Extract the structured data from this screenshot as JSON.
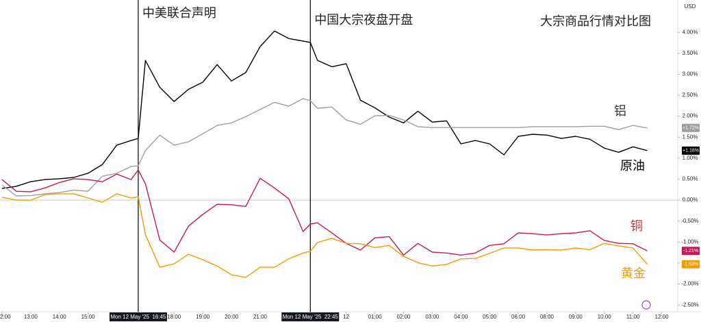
{
  "chart_data": {
    "type": "line",
    "title": "大宗商品行情对比图",
    "currency": "USD",
    "x": [
      0,
      0.5,
      1,
      1.5,
      2,
      2.5,
      3,
      3.5,
      4,
      4.5,
      4.75,
      5,
      5.5,
      6,
      6.5,
      7,
      7.5,
      8,
      8.5,
      9,
      9.5,
      10,
      10.5,
      10.75,
      11,
      11.5,
      12,
      12.5,
      13,
      13.5,
      14,
      14.5,
      15,
      15.5,
      16,
      16.5,
      17,
      17.5,
      18,
      18.5,
      19,
      19.5,
      20,
      20.5,
      21,
      21.5,
      22,
      22.5
    ],
    "series": [
      {
        "name": "原油",
        "color": "#000000",
        "end_label": "+1.18%",
        "values": [
          0.28,
          0.33,
          0.44,
          0.49,
          0.51,
          0.54,
          0.64,
          0.85,
          1.31,
          1.42,
          1.47,
          3.33,
          2.69,
          2.35,
          2.64,
          2.81,
          3.23,
          2.84,
          3.04,
          3.66,
          4.03,
          3.85,
          3.79,
          3.76,
          3.33,
          3.18,
          3.25,
          2.38,
          2.2,
          1.98,
          1.84,
          2.12,
          1.86,
          1.89,
          1.34,
          1.42,
          1.34,
          1.08,
          1.52,
          1.57,
          1.55,
          1.47,
          1.52,
          1.45,
          1.24,
          1.14,
          1.27,
          1.18
        ]
      },
      {
        "name": "铝",
        "color": "#9e9e9e",
        "end_label": "+1.72%",
        "values": [
          0.36,
          0.1,
          0.11,
          0.15,
          0.18,
          0.24,
          0.21,
          0.57,
          0.64,
          0.8,
          0.82,
          1.18,
          1.55,
          1.31,
          1.39,
          1.58,
          1.78,
          1.84,
          1.99,
          2.16,
          2.33,
          2.24,
          2.42,
          2.37,
          2.19,
          2.22,
          1.91,
          1.81,
          2.01,
          2.02,
          1.91,
          1.75,
          1.73,
          1.73,
          1.73,
          1.73,
          1.73,
          1.73,
          1.73,
          1.75,
          1.75,
          1.75,
          1.75,
          1.76,
          1.76,
          1.68,
          1.78,
          1.72
        ]
      },
      {
        "name": "铜",
        "color": "#c2185b",
        "end_label": "-1.21%",
        "values": [
          0.49,
          0.21,
          0.2,
          0.29,
          0.42,
          0.51,
          0.49,
          0.44,
          0.62,
          0.49,
          0.72,
          0.39,
          -0.95,
          -1.24,
          -0.62,
          -0.34,
          -0.1,
          -0.11,
          -0.15,
          0.52,
          0.29,
          0.03,
          -0.75,
          -0.57,
          -0.54,
          -0.78,
          -1.03,
          -1.19,
          -0.9,
          -0.87,
          -1.31,
          -1.03,
          -1.24,
          -1.26,
          -1.31,
          -1.26,
          -1.08,
          -1.04,
          -0.78,
          -0.8,
          -0.83,
          -0.8,
          -0.78,
          -0.73,
          -0.96,
          -1.03,
          -1.04,
          -1.21
        ]
      },
      {
        "name": "黄金",
        "color": "#f59b00",
        "end_label": "-1.53%",
        "values": [
          0.07,
          0,
          0,
          0.13,
          0.15,
          0.15,
          0.05,
          -0.05,
          0.15,
          0.05,
          0.08,
          -0.82,
          -1.6,
          -1.52,
          -1.29,
          -1.42,
          -1.57,
          -1.78,
          -1.84,
          -1.6,
          -1.6,
          -1.4,
          -1.26,
          -1.22,
          -1.01,
          -0.91,
          -1.03,
          -1.04,
          -1.13,
          -1.08,
          -1.34,
          -1.49,
          -1.57,
          -1.53,
          -1.4,
          -1.39,
          -1.27,
          -1.14,
          -1.14,
          -1.19,
          -1.18,
          -1.19,
          -1.14,
          -1.18,
          -1.03,
          -1.09,
          -1.14,
          -1.53
        ]
      }
    ],
    "events": [
      {
        "x": 4.75,
        "label": "中美联合声明"
      },
      {
        "x": 10.75,
        "label": "中国大宗夜盘开盘"
      }
    ],
    "xlim": [
      -0.07,
      23.56
    ],
    "ylim": [
      -2.66,
      4.77
    ],
    "xticks": [
      {
        "value": 0,
        "label": "2:00"
      },
      {
        "value": 1,
        "label": "13:00"
      },
      {
        "value": 2,
        "label": "14:00"
      },
      {
        "value": 3,
        "label": "15:00"
      },
      {
        "value": 4.75,
        "label": "Mon 12 May '25  16:45"
      },
      {
        "value": 6,
        "label": "18:00"
      },
      {
        "value": 7,
        "label": "19:00"
      },
      {
        "value": 8,
        "label": "20:00"
      },
      {
        "value": 9,
        "label": "21:00"
      },
      {
        "value": 10.75,
        "label": "Mon 12 May '25  22:45"
      },
      12,
      {
        "value": 13,
        "label": "01:00"
      },
      {
        "value": 14,
        "label": "02:00"
      },
      {
        "value": 15,
        "label": "03:00"
      },
      {
        "value": 16,
        "label": "04:00"
      },
      {
        "value": 17,
        "label": "05:00"
      },
      {
        "value": 18,
        "label": "06:00"
      },
      {
        "value": 19,
        "label": "08:00"
      },
      {
        "value": 20,
        "label": "09:00"
      },
      {
        "value": 21,
        "label": "10:00"
      },
      {
        "value": 22,
        "label": "11:00"
      },
      {
        "value": 23,
        "label": "12:00"
      }
    ],
    "yticks": [
      {
        "value": 4,
        "label": "4.00%"
      },
      {
        "value": 3.5,
        "label": "3.50%"
      },
      {
        "value": 3,
        "label": "3.00%"
      },
      {
        "value": 2.5,
        "label": "2.50%"
      },
      {
        "value": 2,
        "label": "2.00%"
      },
      {
        "value": 1.5,
        "label": "1.50%"
      },
      {
        "value": 1,
        "label": "1.00%"
      },
      {
        "value": 0.5,
        "label": "0.50%"
      },
      {
        "value": 0,
        "label": "0.00%"
      },
      {
        "value": -0.5,
        "label": "-0.50%"
      },
      {
        "value": -1,
        "label": "-1.00%"
      },
      {
        "value": -1.5,
        "label": "-1.50%"
      },
      {
        "value": -2,
        "label": "-2.00%"
      },
      {
        "value": -2.5,
        "label": "-2.50%"
      }
    ],
    "zero_line": true
  }
}
